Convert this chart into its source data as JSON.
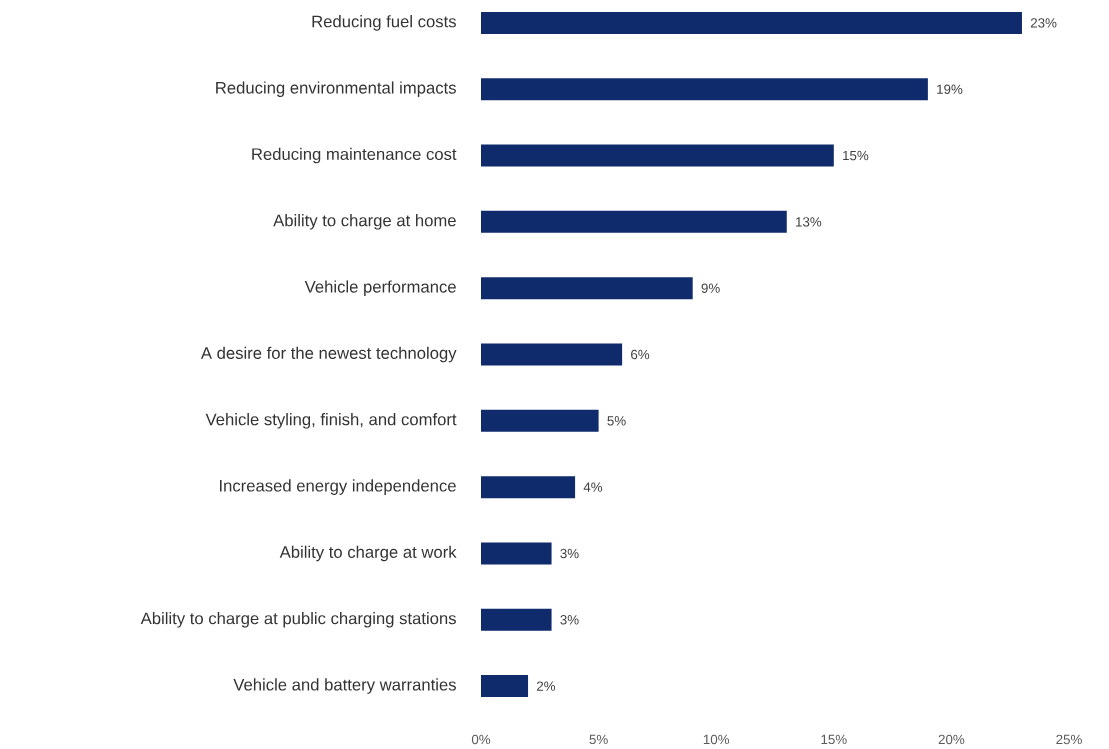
{
  "chart_data": {
    "type": "bar",
    "orientation": "horizontal",
    "categories": [
      "Reducing fuel costs",
      "Reducing environmental impacts",
      "Reducing maintenance cost",
      "Ability to charge at home",
      "Vehicle performance",
      "A desire for the newest technology",
      "Vehicle styling, finish, and comfort",
      "Increased energy independence",
      "Ability to charge at work",
      "Ability to charge at public charging stations",
      "Vehicle and battery warranties"
    ],
    "values": [
      23,
      19,
      15,
      13,
      9,
      6,
      5,
      4,
      3,
      3,
      2
    ],
    "value_labels": [
      "23%",
      "19%",
      "15%",
      "13%",
      "9%",
      "6%",
      "5%",
      "4%",
      "3%",
      "3%",
      "2%"
    ],
    "color": "#0f2b6b",
    "xlim": [
      0,
      25
    ],
    "xticks": [
      {
        "value": 0,
        "label": "0%"
      },
      {
        "value": 5,
        "label": "5%"
      },
      {
        "value": 10,
        "label": "10%"
      },
      {
        "value": 15,
        "label": "15%"
      },
      {
        "value": 20,
        "label": "20%"
      },
      {
        "value": 25,
        "label": "25%"
      }
    ]
  }
}
